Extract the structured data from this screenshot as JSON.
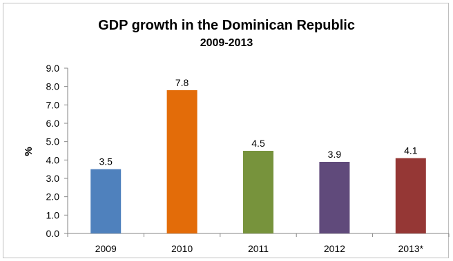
{
  "chart_data": {
    "type": "bar",
    "title": "GDP growth in the Dominican Republic",
    "subtitle": "2009-2013",
    "xlabel": "",
    "ylabel": "%",
    "categories": [
      "2009",
      "2010",
      "2011",
      "2012",
      "2013*"
    ],
    "values": [
      3.5,
      7.8,
      4.5,
      3.9,
      4.1
    ],
    "data_labels": [
      "3.5",
      "7.8",
      "4.5",
      "3.9",
      "4.1"
    ],
    "colors": [
      "#4f81bd",
      "#e36c09",
      "#77933c",
      "#604a7b",
      "#953735"
    ],
    "ylim": [
      0,
      9
    ],
    "yticks": [
      "0.0",
      "1.0",
      "2.0",
      "3.0",
      "4.0",
      "5.0",
      "6.0",
      "7.0",
      "8.0",
      "9.0"
    ],
    "grid": false,
    "legend": "none"
  }
}
